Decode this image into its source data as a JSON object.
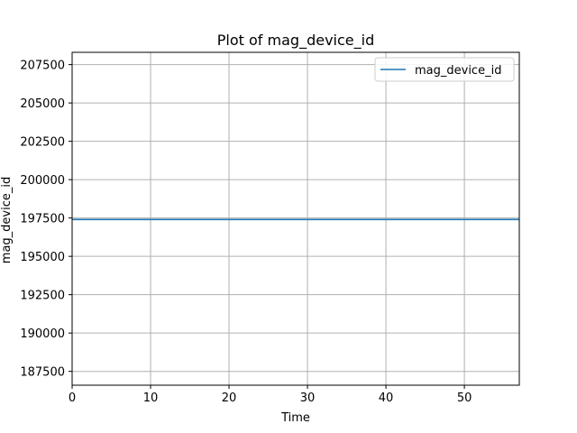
{
  "chart_data": {
    "type": "line",
    "title": "Plot of mag_device_id",
    "xlabel": "Time",
    "ylabel": "mag_device_id",
    "xlim": [
      0,
      57
    ],
    "ylim": [
      186600,
      208300
    ],
    "x_ticks": [
      0,
      10,
      20,
      30,
      40,
      50
    ],
    "x_tick_labels": [
      "0",
      "10",
      "20",
      "30",
      "40",
      "50"
    ],
    "y_ticks": [
      187500,
      190000,
      192500,
      195000,
      197500,
      200000,
      202500,
      205000,
      207500
    ],
    "y_tick_labels": [
      "187500",
      "190000",
      "192500",
      "195000",
      "197500",
      "200000",
      "202500",
      "205000",
      "207500"
    ],
    "grid": true,
    "legend_position": "top-right",
    "series": [
      {
        "name": "mag_device_id",
        "color": "#1f77b4",
        "x": [
          0,
          57
        ],
        "values": [
          197400,
          197400
        ]
      }
    ]
  }
}
